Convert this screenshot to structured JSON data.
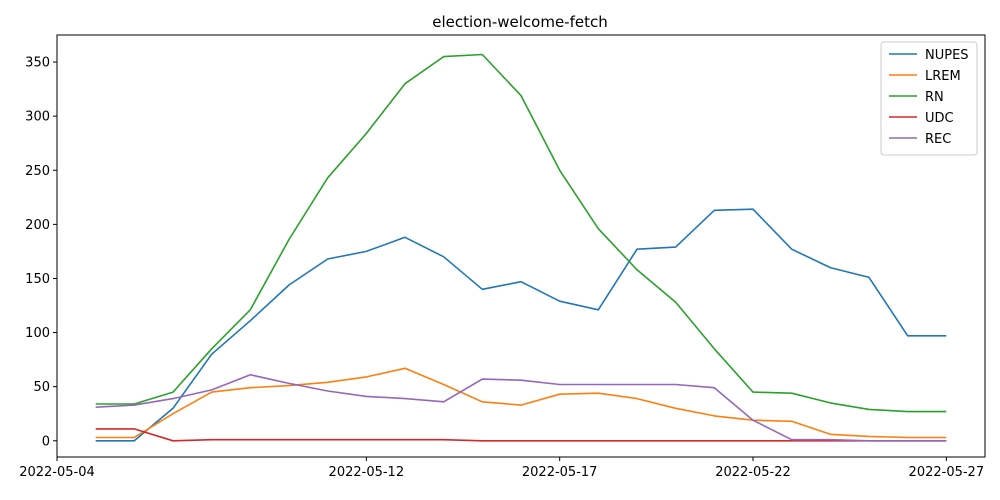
{
  "chart_data": {
    "type": "line",
    "title": "election-welcome-fetch",
    "xlabel": "",
    "ylabel": "",
    "x": [
      "2022-05-05",
      "2022-05-06",
      "2022-05-07",
      "2022-05-08",
      "2022-05-09",
      "2022-05-10",
      "2022-05-11",
      "2022-05-12",
      "2022-05-13",
      "2022-05-14",
      "2022-05-15",
      "2022-05-16",
      "2022-05-17",
      "2022-05-18",
      "2022-05-19",
      "2022-05-20",
      "2022-05-21",
      "2022-05-22",
      "2022-05-23",
      "2022-05-24",
      "2022-05-25",
      "2022-05-26",
      "2022-05-27"
    ],
    "xticks": [
      "2022-05-04",
      "2022-05-12",
      "2022-05-17",
      "2022-05-22",
      "2022-05-27"
    ],
    "xlim": [
      "2022-05-04",
      "2022-05-28"
    ],
    "yticks": [
      0,
      50,
      100,
      150,
      200,
      250,
      300,
      350
    ],
    "ylim": [
      -15,
      375
    ],
    "grid": false,
    "legend_position": "top-right",
    "series": [
      {
        "name": "NUPES",
        "color": "#1f77b4",
        "values": [
          0,
          0,
          30,
          80,
          111,
          144,
          168,
          175,
          188,
          170,
          140,
          147,
          129,
          121,
          177,
          179,
          213,
          214,
          177,
          160,
          151,
          97,
          97
        ]
      },
      {
        "name": "LREM",
        "color": "#ff7f0e",
        "values": [
          3,
          3,
          25,
          45,
          49,
          51,
          54,
          59,
          67,
          52,
          36,
          33,
          43,
          44,
          39,
          30,
          23,
          19,
          18,
          6,
          4,
          3,
          3
        ]
      },
      {
        "name": "RN",
        "color": "#2ca02c",
        "values": [
          34,
          34,
          45,
          85,
          121,
          186,
          243,
          284,
          330,
          355,
          357,
          319,
          250,
          196,
          158,
          128,
          85,
          45,
          44,
          35,
          29,
          27,
          27
        ]
      },
      {
        "name": "UDC",
        "color": "#d62728",
        "values": [
          11,
          11,
          0,
          1,
          1,
          1,
          1,
          1,
          1,
          1,
          0,
          0,
          0,
          0,
          0,
          0,
          0,
          0,
          0,
          0,
          0,
          0,
          0
        ]
      },
      {
        "name": "REC",
        "color": "#9467bd",
        "values": [
          31,
          33,
          39,
          47,
          61,
          53,
          46,
          41,
          39,
          36,
          57,
          56,
          52,
          52,
          52,
          52,
          49,
          19,
          1,
          1,
          0,
          0,
          0
        ]
      }
    ]
  }
}
